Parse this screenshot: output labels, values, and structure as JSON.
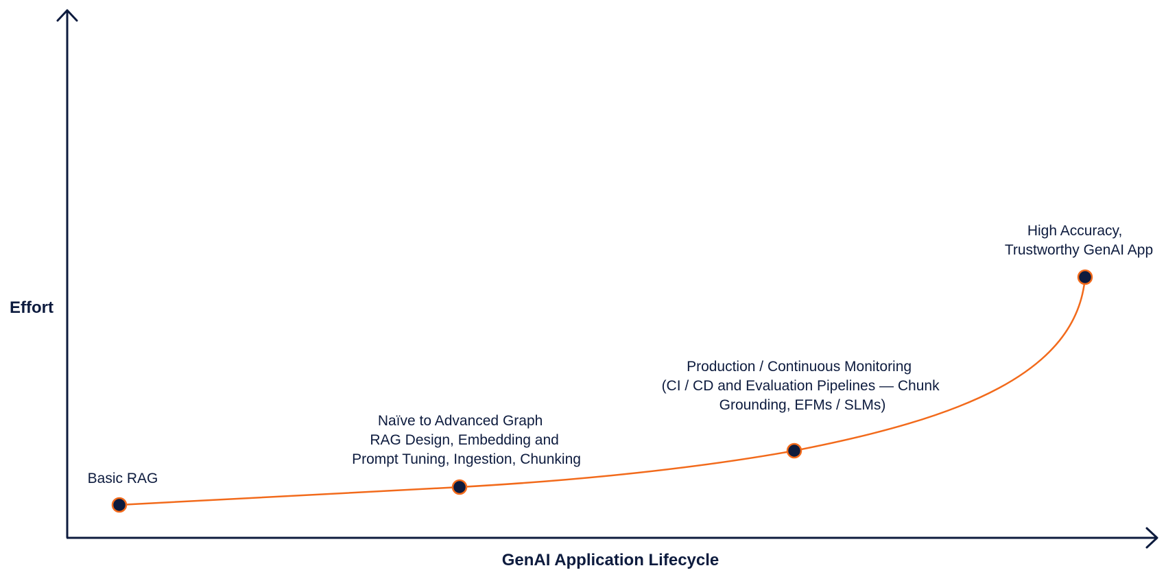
{
  "diagram": {
    "y_axis_title": "Effort",
    "x_axis_title": "GenAI Application Lifecycle",
    "colors": {
      "axis": "#0d1b3e",
      "curve": "#f26a1b",
      "marker_fill": "#0d1b3e",
      "marker_stroke": "#f26a1b",
      "text": "#0d1b3e"
    },
    "stages": [
      {
        "lines": [
          "Basic RAG"
        ]
      },
      {
        "lines": [
          "Naïve to Advanced Graph",
          "RAG Design, Embedding and",
          "Prompt Tuning, Ingestion, Chunking"
        ]
      },
      {
        "lines": [
          "Production / Continuous  Monitoring",
          "(CI / CD and Evaluation Pipelines — Chunk",
          "Grounding, EFMs / SLMs)"
        ]
      },
      {
        "lines": [
          "High Accuracy,",
          "Trustworthy GenAI App"
        ]
      }
    ]
  }
}
